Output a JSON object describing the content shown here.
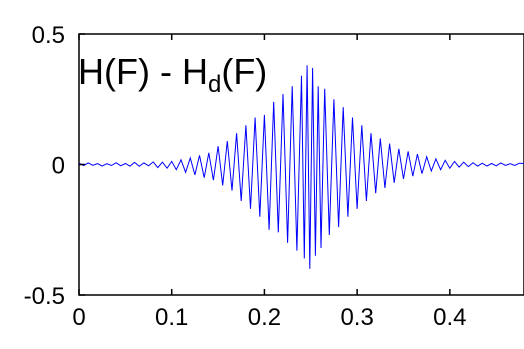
{
  "chart_data": {
    "type": "line",
    "title": {
      "prefix": "H(F) - H",
      "subscript": "d",
      "suffix": "(F)"
    },
    "xlabel": "",
    "ylabel": "",
    "xlim": [
      0,
      0.48
    ],
    "ylim": [
      -0.5,
      0.5
    ],
    "grid": false,
    "xticks": [
      {
        "value": 0,
        "label": "0"
      },
      {
        "value": 0.1,
        "label": "0.1"
      },
      {
        "value": 0.2,
        "label": "0.2"
      },
      {
        "value": 0.3,
        "label": "0.3"
      },
      {
        "value": 0.4,
        "label": "0.4"
      }
    ],
    "yticks": [
      {
        "value": 0.5,
        "label": "0.5"
      },
      {
        "value": 0,
        "label": "0"
      },
      {
        "value": -0.5,
        "label": "-0.5"
      }
    ],
    "series": [
      {
        "color": "#0000ff",
        "x": [
          0,
          0.005,
          0.01,
          0.015,
          0.02,
          0.025,
          0.03,
          0.035,
          0.04,
          0.045,
          0.05,
          0.055,
          0.06,
          0.065,
          0.07,
          0.075,
          0.08,
          0.085,
          0.09,
          0.095,
          0.1,
          0.105,
          0.11,
          0.115,
          0.12,
          0.125,
          0.13,
          0.135,
          0.14,
          0.145,
          0.15,
          0.155,
          0.16,
          0.165,
          0.17,
          0.175,
          0.18,
          0.185,
          0.19,
          0.195,
          0.2,
          0.205,
          0.21,
          0.215,
          0.22,
          0.225,
          0.23,
          0.235,
          0.24,
          0.243,
          0.246,
          0.249,
          0.252,
          0.255,
          0.258,
          0.261,
          0.265,
          0.27,
          0.275,
          0.28,
          0.285,
          0.29,
          0.295,
          0.3,
          0.305,
          0.31,
          0.315,
          0.32,
          0.325,
          0.33,
          0.335,
          0.34,
          0.345,
          0.35,
          0.355,
          0.36,
          0.365,
          0.37,
          0.375,
          0.38,
          0.385,
          0.39,
          0.395,
          0.4,
          0.405,
          0.41,
          0.415,
          0.42,
          0.425,
          0.43,
          0.435,
          0.44,
          0.445,
          0.45,
          0.455,
          0.46,
          0.465,
          0.47,
          0.475,
          0.48
        ],
        "y": [
          0.005,
          -0.004,
          0.006,
          -0.003,
          0.004,
          -0.006,
          0.003,
          -0.004,
          0.007,
          -0.005,
          0.004,
          -0.006,
          0.008,
          -0.007,
          0.006,
          -0.005,
          0.01,
          -0.012,
          0.009,
          -0.014,
          0.012,
          -0.02,
          0.018,
          -0.03,
          0.025,
          -0.04,
          0.035,
          -0.05,
          0.045,
          -0.06,
          0.07,
          -0.08,
          0.09,
          -0.1,
          0.12,
          -0.14,
          0.15,
          -0.17,
          0.18,
          -0.2,
          0.19,
          -0.25,
          0.24,
          -0.26,
          0.27,
          -0.3,
          0.3,
          -0.33,
          0.34,
          -0.36,
          0.38,
          -0.4,
          0.37,
          -0.35,
          0.3,
          -0.32,
          0.29,
          -0.27,
          0.25,
          -0.24,
          0.22,
          -0.2,
          0.18,
          -0.17,
          0.15,
          -0.14,
          0.12,
          -0.11,
          0.1,
          -0.09,
          0.08,
          -0.07,
          0.06,
          -0.055,
          0.05,
          -0.045,
          0.04,
          -0.035,
          0.03,
          -0.025,
          0.022,
          -0.02,
          0.016,
          -0.014,
          0.012,
          -0.01,
          0.009,
          -0.008,
          0.007,
          -0.006,
          0.005,
          -0.006,
          0.004,
          -0.005,
          0.006,
          -0.004,
          0.003,
          -0.004,
          0.005,
          0.004
        ]
      }
    ]
  }
}
